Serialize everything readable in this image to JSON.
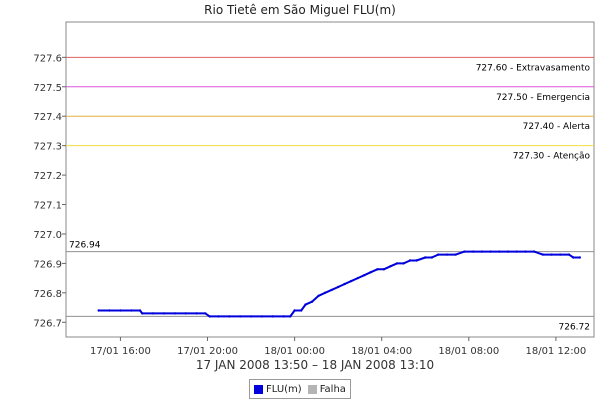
{
  "chart_data": {
    "type": "line",
    "title": "Rio Tietê em São Miguel FLU(m)",
    "xlabel": "17 JAN 2008 13:50 – 18 JAN 2008 13:10",
    "ylim": [
      726.65,
      727.72
    ],
    "xlim_hours": [
      13.5,
      37.75
    ],
    "y_ticks": [
      "726.7",
      "726.8",
      "726.9",
      "727.0",
      "727.1",
      "727.2",
      "727.3",
      "727.4",
      "727.5",
      "727.6"
    ],
    "x_ticks": [
      {
        "h": 16,
        "label": "17/01 16:00"
      },
      {
        "h": 20,
        "label": "17/01 20:00"
      },
      {
        "h": 24,
        "label": "18/01 00:00"
      },
      {
        "h": 28,
        "label": "18/01 04:00"
      },
      {
        "h": 32,
        "label": "18/01 08:00"
      },
      {
        "h": 36,
        "label": "18/01 12:00"
      }
    ],
    "thresholds": [
      {
        "value": 727.6,
        "label": "727.60 - Extravasamento",
        "color": "#e06060"
      },
      {
        "value": 727.5,
        "label": "727.50 - Emergencia",
        "color": "#dd55dd"
      },
      {
        "value": 727.4,
        "label": "727.40 - Alerta",
        "color": "#e8b040"
      },
      {
        "value": 727.3,
        "label": "727.30 - Atenção",
        "color": "#f0e040"
      }
    ],
    "reference_lines": [
      {
        "value": 726.94,
        "label": "726.94",
        "label_side": "left"
      },
      {
        "value": 726.72,
        "label": "726.72",
        "label_side": "right"
      }
    ],
    "series": [
      {
        "name": "FLU(m)",
        "color": "#0000dd",
        "points": [
          [
            15.0,
            726.74
          ],
          [
            15.5,
            726.74
          ],
          [
            16.0,
            726.74
          ],
          [
            16.5,
            726.74
          ],
          [
            16.9,
            726.74
          ],
          [
            17.0,
            726.73
          ],
          [
            17.5,
            726.73
          ],
          [
            18.0,
            726.73
          ],
          [
            18.5,
            726.73
          ],
          [
            19.0,
            726.73
          ],
          [
            19.5,
            726.73
          ],
          [
            19.9,
            726.73
          ],
          [
            20.1,
            726.72
          ],
          [
            20.5,
            726.72
          ],
          [
            21.0,
            726.72
          ],
          [
            21.5,
            726.72
          ],
          [
            22.0,
            726.72
          ],
          [
            22.5,
            726.72
          ],
          [
            23.0,
            726.72
          ],
          [
            23.5,
            726.72
          ],
          [
            23.8,
            726.72
          ],
          [
            24.0,
            726.74
          ],
          [
            24.3,
            726.74
          ],
          [
            24.5,
            726.76
          ],
          [
            24.8,
            726.77
          ],
          [
            25.1,
            726.79
          ],
          [
            25.4,
            726.8
          ],
          [
            25.7,
            726.81
          ],
          [
            26.0,
            726.82
          ],
          [
            26.3,
            726.83
          ],
          [
            26.6,
            726.84
          ],
          [
            26.9,
            726.85
          ],
          [
            27.2,
            726.86
          ],
          [
            27.5,
            726.87
          ],
          [
            27.8,
            726.88
          ],
          [
            28.1,
            726.88
          ],
          [
            28.4,
            726.89
          ],
          [
            28.7,
            726.9
          ],
          [
            29.0,
            726.9
          ],
          [
            29.3,
            726.91
          ],
          [
            29.6,
            726.91
          ],
          [
            30.0,
            726.92
          ],
          [
            30.3,
            726.92
          ],
          [
            30.6,
            726.93
          ],
          [
            31.0,
            726.93
          ],
          [
            31.4,
            726.93
          ],
          [
            31.8,
            726.94
          ],
          [
            32.2,
            726.94
          ],
          [
            32.6,
            726.94
          ],
          [
            33.0,
            726.94
          ],
          [
            33.4,
            726.94
          ],
          [
            33.8,
            726.94
          ],
          [
            34.2,
            726.94
          ],
          [
            34.6,
            726.94
          ],
          [
            35.0,
            726.94
          ],
          [
            35.4,
            726.93
          ],
          [
            35.8,
            726.93
          ],
          [
            36.2,
            726.93
          ],
          [
            36.6,
            726.93
          ],
          [
            36.8,
            726.92
          ],
          [
            37.1,
            726.92
          ]
        ]
      }
    ],
    "legend": [
      {
        "name": "FLU(m)",
        "color": "#0000dd"
      },
      {
        "name": "Falha",
        "color": "#b4b4b4"
      }
    ]
  }
}
